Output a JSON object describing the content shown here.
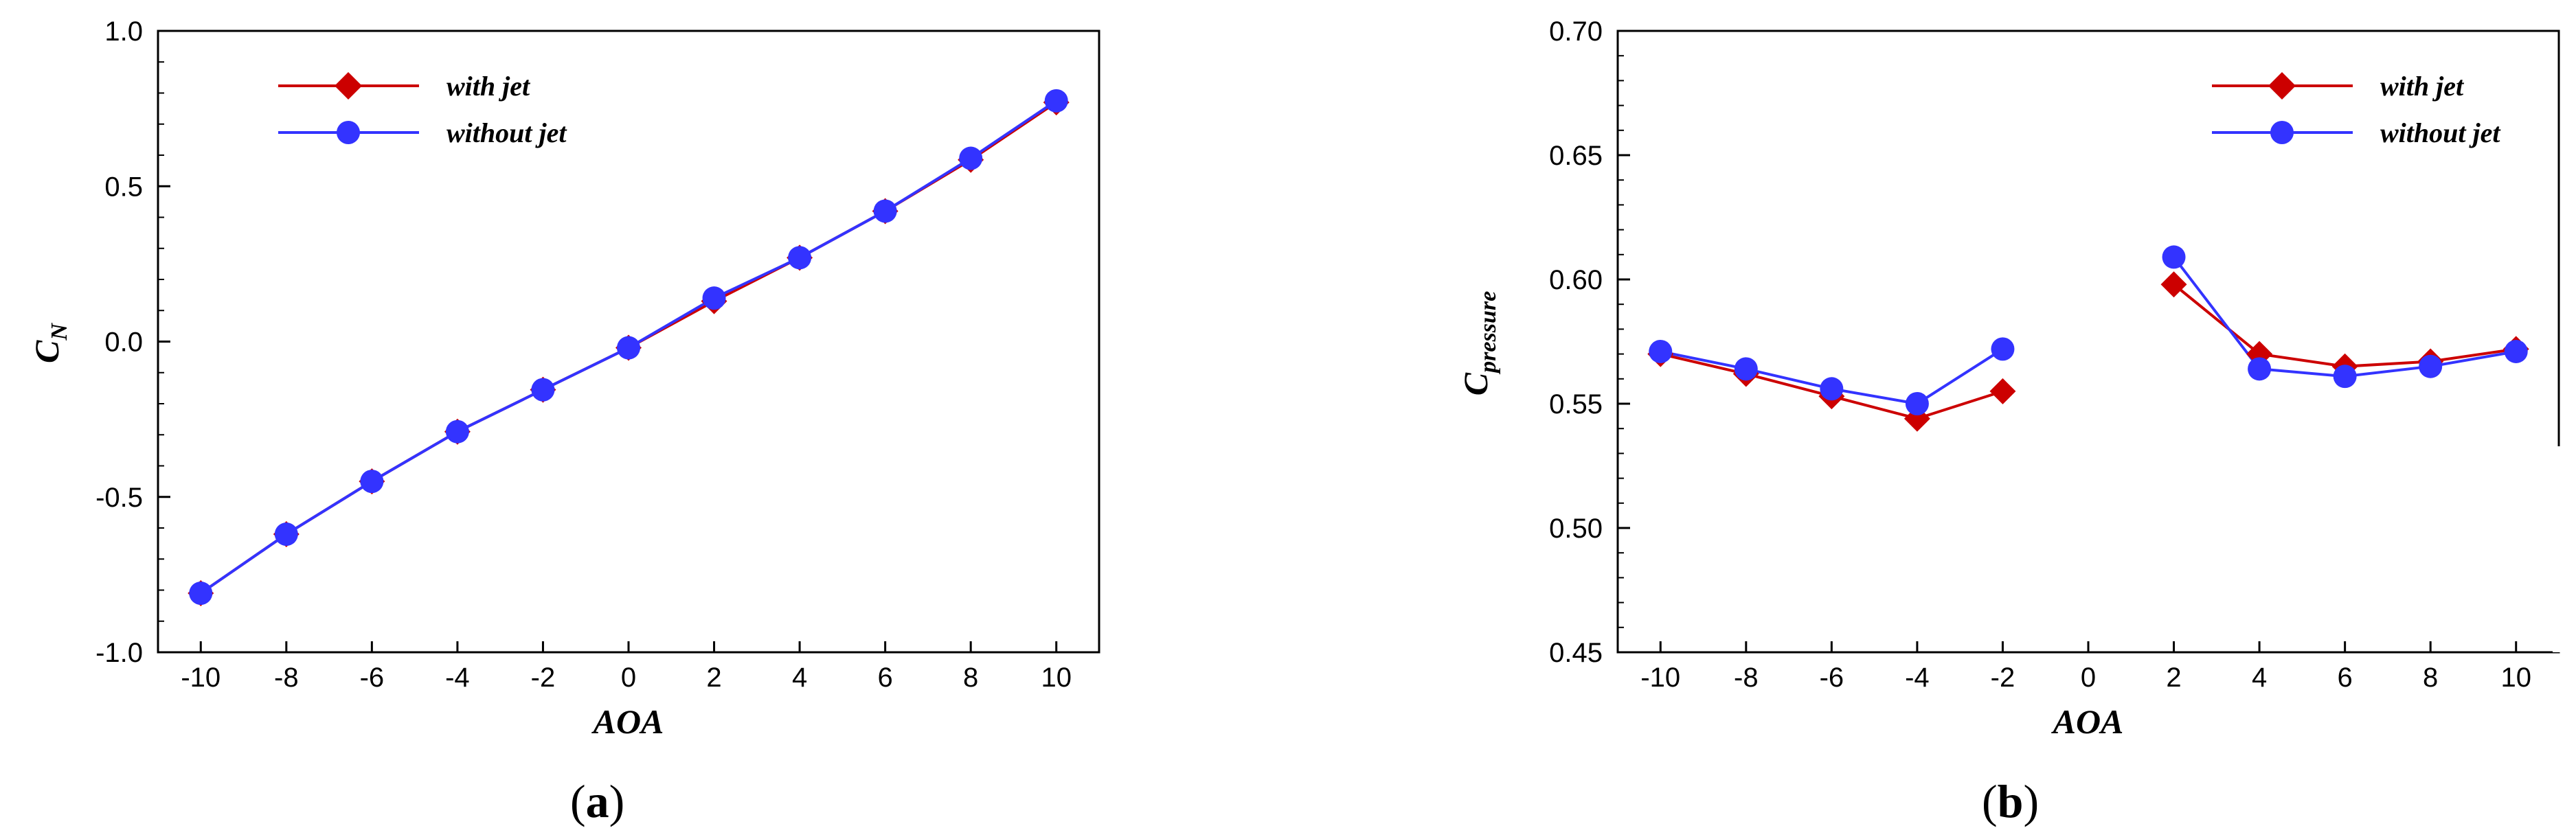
{
  "colors": {
    "with_jet": "#cc0000",
    "without_jet": "#3333ff",
    "axis": "#000000"
  },
  "chart_data": [
    {
      "panel": "a",
      "type": "line",
      "caption_prefix": "(",
      "caption_letter": "a",
      "caption_suffix": ")",
      "xlabel": "AOA",
      "ylabel_main": "C",
      "ylabel_sub": "N",
      "xlim": [
        -11,
        11
      ],
      "ylim": [
        -1.0,
        1.0
      ],
      "x_ticks": [
        -10,
        -8,
        -6,
        -4,
        -2,
        0,
        2,
        4,
        6,
        8,
        10
      ],
      "x_tick_labels": [
        "-10",
        "-8",
        "-6",
        "-4",
        "-2",
        "0",
        "2",
        "4",
        "6",
        "8",
        "10"
      ],
      "y_ticks": [
        -1.0,
        -0.5,
        0.0,
        0.5,
        1.0
      ],
      "y_tick_labels": [
        "-1.0",
        "-0.5",
        "0.0",
        "0.5",
        "1.0"
      ],
      "legend_position": "top-left",
      "series": [
        {
          "name": "with jet",
          "marker": "diamond",
          "x": [
            -10,
            -8,
            -6,
            -4,
            -2,
            0,
            2,
            4,
            6,
            8,
            10
          ],
          "y": [
            -0.81,
            -0.62,
            -0.45,
            -0.29,
            -0.155,
            -0.02,
            0.13,
            0.27,
            0.42,
            0.585,
            0.77
          ]
        },
        {
          "name": "without jet",
          "marker": "circle",
          "x": [
            -10,
            -8,
            -6,
            -4,
            -2,
            0,
            2,
            4,
            6,
            8,
            10
          ],
          "y": [
            -0.81,
            -0.62,
            -0.45,
            -0.29,
            -0.155,
            -0.02,
            0.14,
            0.27,
            0.42,
            0.59,
            0.775
          ]
        }
      ]
    },
    {
      "panel": "b",
      "type": "line",
      "caption_prefix": "(",
      "caption_letter": "b",
      "caption_suffix": ")",
      "xlabel": "AOA",
      "ylabel_main": "C",
      "ylabel_sub": "pressure",
      "xlim": [
        -11,
        11
      ],
      "ylim": [
        0.45,
        0.7
      ],
      "x_ticks": [
        -10,
        -8,
        -6,
        -4,
        -2,
        0,
        2,
        4,
        6,
        8,
        10
      ],
      "x_tick_labels": [
        "-10",
        "-8",
        "-6",
        "-4",
        "-2",
        "0",
        "2",
        "4",
        "6",
        "8",
        "10"
      ],
      "y_ticks": [
        0.45,
        0.5,
        0.55,
        0.6,
        0.65,
        0.7
      ],
      "y_tick_labels": [
        "0.45",
        "0.50",
        "0.55",
        "0.60",
        "0.65",
        "0.70"
      ],
      "legend_position": "top-right",
      "series": [
        {
          "name": "with jet",
          "marker": "diamond",
          "segments": [
            {
              "x": [
                -10,
                -8,
                -6,
                -4,
                -2
              ],
              "y": [
                0.57,
                0.562,
                0.553,
                0.544,
                0.555
              ]
            },
            {
              "x": [
                2,
                4,
                6,
                8,
                10
              ],
              "y": [
                0.598,
                0.57,
                0.565,
                0.567,
                0.572
              ]
            }
          ]
        },
        {
          "name": "without jet",
          "marker": "circle",
          "segments": [
            {
              "x": [
                -10,
                -8,
                -6,
                -4,
                -2
              ],
              "y": [
                0.571,
                0.564,
                0.556,
                0.55,
                0.572
              ]
            },
            {
              "x": [
                2,
                4,
                6,
                8,
                10
              ],
              "y": [
                0.609,
                0.564,
                0.561,
                0.565,
                0.571
              ]
            }
          ]
        }
      ]
    }
  ]
}
